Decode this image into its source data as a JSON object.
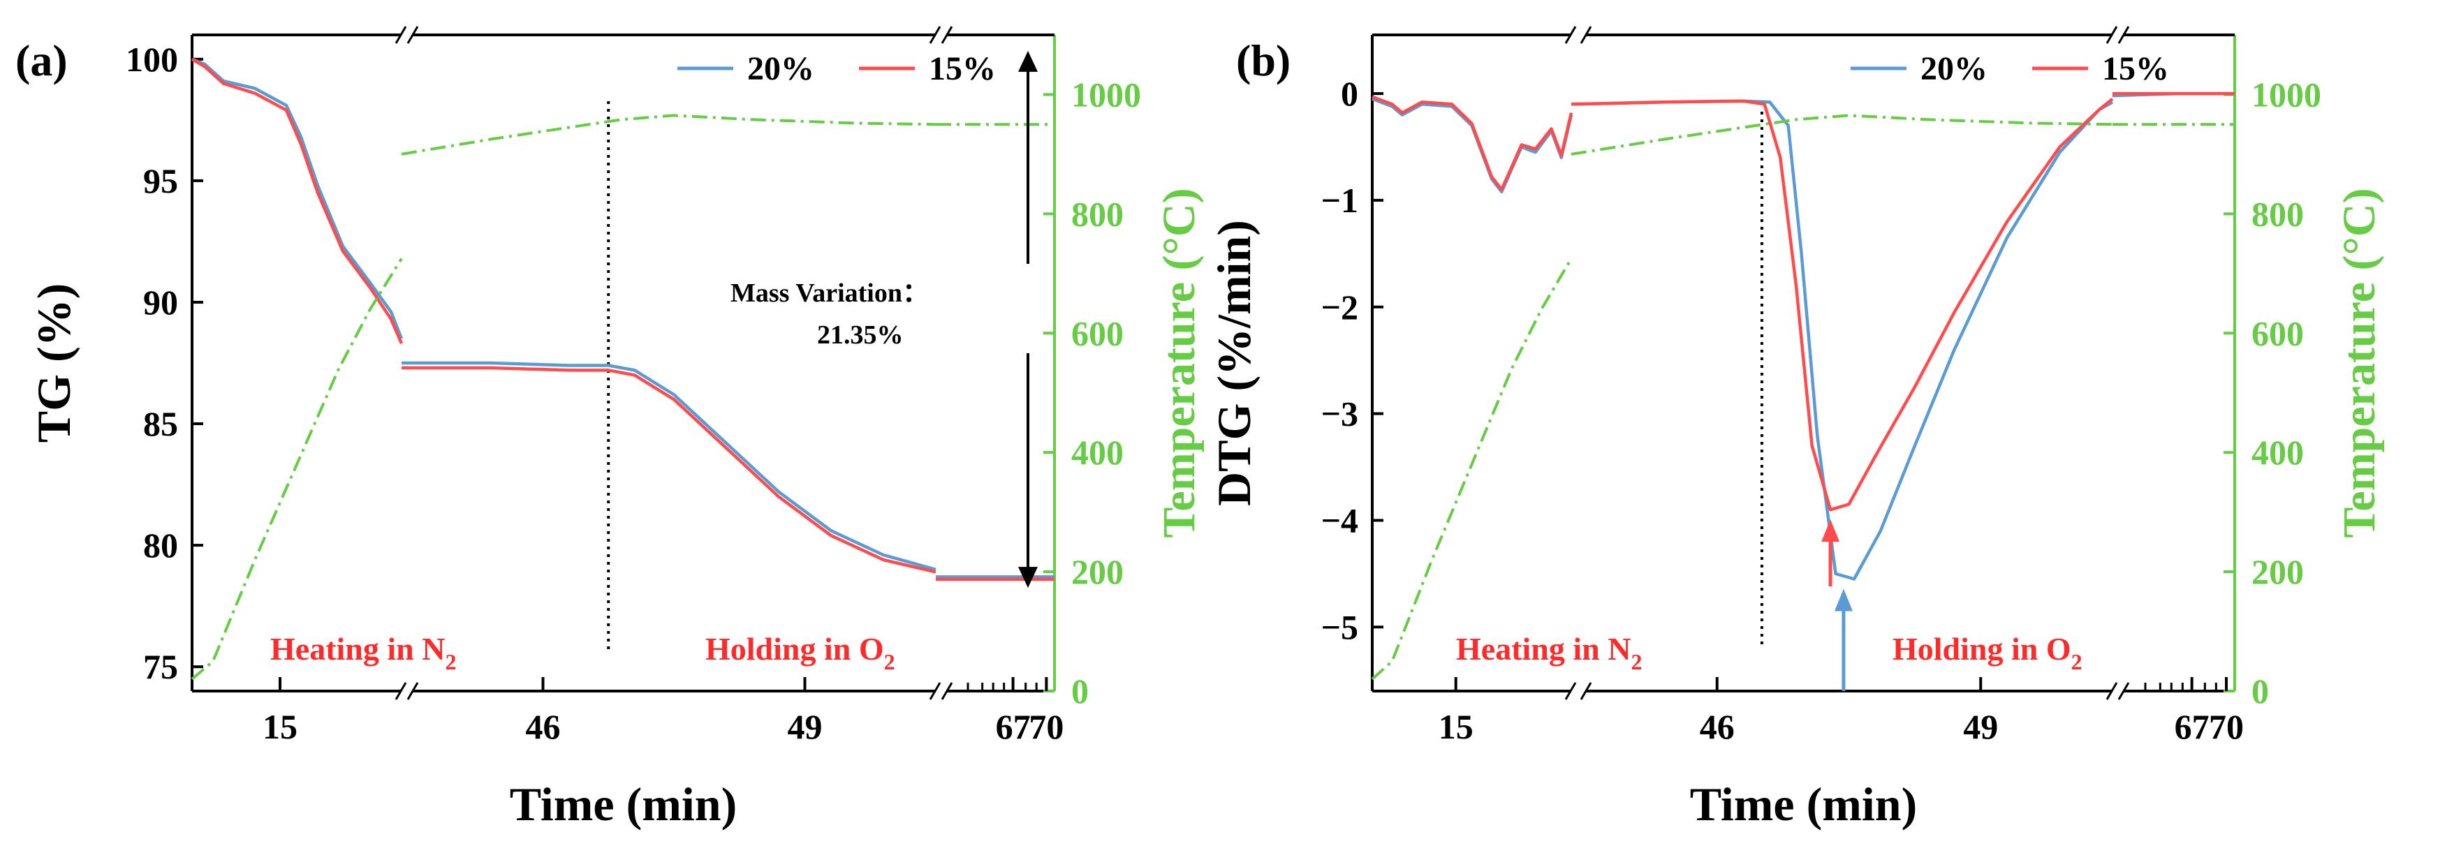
{
  "chart_data": [
    {
      "panel_label": "(a)",
      "type": "line",
      "xlabel": "Time (min)",
      "ylabel_left": "TG (%)",
      "ylabel_right": "Temperature (°C)",
      "ylim_left": [
        74,
        101
      ],
      "ylim_right": [
        0,
        1100
      ],
      "yticks_left": [
        "75",
        "80",
        "85",
        "90",
        "95",
        "100"
      ],
      "yticks_right": [
        "0",
        "200",
        "400",
        "600",
        "800",
        "1000"
      ],
      "xticks": [
        "15",
        "46",
        "49",
        "67",
        "70"
      ],
      "legend": [
        "20%",
        "15%"
      ],
      "series": [
        {
          "name": "20%",
          "color": "#5b9bd5",
          "axis": "left",
          "x": [
            0,
            0.06,
            0.15,
            0.3,
            0.45,
            0.52,
            0.6,
            0.72,
            0.85,
            0.95,
            1.0,
            1.0,
            1.3,
            1.6,
            1.75,
            1.85,
            2.0,
            2.2,
            2.4,
            2.6,
            2.8,
            3.0,
            3.0,
            3.2,
            3.4,
            3.6
          ],
          "y": [
            100,
            99.8,
            99.1,
            98.8,
            98.1,
            96.8,
            94.8,
            92.3,
            90.8,
            89.6,
            88.5,
            87.5,
            87.5,
            87.4,
            87.4,
            87.2,
            86.2,
            84.2,
            82.2,
            80.6,
            79.6,
            79.0,
            78.7,
            78.7,
            78.7,
            78.7
          ]
        },
        {
          "name": "15%",
          "color": "#ff4b4b",
          "axis": "left",
          "x": [
            0,
            0.06,
            0.15,
            0.3,
            0.45,
            0.52,
            0.6,
            0.72,
            0.85,
            0.95,
            1.0,
            1.0,
            1.3,
            1.6,
            1.75,
            1.85,
            2.0,
            2.2,
            2.4,
            2.6,
            2.8,
            3.0,
            3.0,
            3.2,
            3.4,
            3.6
          ],
          "y": [
            100,
            99.7,
            99.0,
            98.6,
            97.9,
            96.5,
            94.5,
            92.1,
            90.6,
            89.3,
            88.3,
            87.3,
            87.3,
            87.2,
            87.2,
            87.0,
            86.0,
            84.0,
            82.0,
            80.4,
            79.4,
            78.9,
            78.6,
            78.6,
            78.6,
            78.6
          ]
        },
        {
          "name": "Temperature",
          "color": "#66cc44",
          "axis": "right",
          "dashed": true,
          "x": [
            0,
            0.1,
            0.3,
            0.5,
            0.7,
            0.85,
            1.0,
            1.0,
            1.3,
            1.6,
            1.8,
            2.0,
            2.3,
            2.7,
            3.0,
            3.0,
            3.6
          ],
          "y": [
            20,
            50,
            220,
            380,
            540,
            640,
            725,
            900,
            925,
            945,
            958,
            965,
            958,
            952,
            950,
            950,
            950
          ]
        }
      ],
      "annotations": {
        "mass_variation_label": "Mass Variation：",
        "mass_variation_value": "21.35%",
        "mass_arrow_top": 100,
        "mass_arrow_bottom": 78.65,
        "divider_x": 1.75,
        "heating_label": "Heating in N",
        "holding_label": "Holding in O",
        "subscript": "2"
      }
    },
    {
      "panel_label": "(b)",
      "type": "line",
      "xlabel": "Time (min)",
      "ylabel_left": "DTG (%/min)",
      "ylabel_right": "Temperature (°C)",
      "ylim_left": [
        -5.6,
        0.55
      ],
      "ylim_right": [
        0,
        1100
      ],
      "yticks_left": [
        "-5",
        "-4",
        "-3",
        "-2",
        "-1",
        "0"
      ],
      "yticks_right": [
        "0",
        "200",
        "400",
        "600",
        "800",
        "1000"
      ],
      "xticks": [
        "15",
        "46",
        "49",
        "67",
        "70"
      ],
      "legend": [
        "20%",
        "15%"
      ],
      "series": [
        {
          "name": "20%",
          "color": "#5b9bd5",
          "axis": "left",
          "x": [
            0,
            0.1,
            0.15,
            0.25,
            0.4,
            0.5,
            0.6,
            0.65,
            0.75,
            0.82,
            0.9,
            0.95,
            1.0,
            1.0,
            1.3,
            1.6,
            1.7,
            1.77,
            1.82,
            1.88,
            1.95,
            2.02,
            2.12,
            2.25,
            2.4,
            2.6,
            2.8,
            2.95,
            3.0,
            3.0,
            3.3,
            3.6
          ],
          "y": [
            -0.05,
            -0.12,
            -0.2,
            -0.1,
            -0.12,
            -0.3,
            -0.8,
            -0.92,
            -0.5,
            -0.55,
            -0.35,
            -0.6,
            -0.2,
            -0.1,
            -0.08,
            -0.07,
            -0.08,
            -0.3,
            -1.5,
            -3.2,
            -4.5,
            -4.55,
            -4.1,
            -3.3,
            -2.4,
            -1.35,
            -0.55,
            -0.15,
            -0.08,
            -0.02,
            0.0,
            0.0
          ]
        },
        {
          "name": "15%",
          "color": "#ff4b4b",
          "axis": "left",
          "x": [
            0,
            0.1,
            0.15,
            0.25,
            0.4,
            0.5,
            0.6,
            0.65,
            0.75,
            0.82,
            0.9,
            0.95,
            1.0,
            1.0,
            1.3,
            1.6,
            1.68,
            1.74,
            1.8,
            1.86,
            1.93,
            2.0,
            2.1,
            2.25,
            2.4,
            2.6,
            2.8,
            2.95,
            3.0,
            3.0,
            3.3,
            3.6
          ],
          "y": [
            -0.03,
            -0.1,
            -0.18,
            -0.08,
            -0.1,
            -0.28,
            -0.78,
            -0.9,
            -0.48,
            -0.52,
            -0.33,
            -0.58,
            -0.18,
            -0.1,
            -0.08,
            -0.07,
            -0.1,
            -0.6,
            -1.8,
            -3.3,
            -3.9,
            -3.85,
            -3.4,
            -2.75,
            -2.05,
            -1.2,
            -0.5,
            -0.15,
            -0.05,
            0.0,
            0.0,
            0.0
          ]
        },
        {
          "name": "Temperature",
          "color": "#66cc44",
          "axis": "right",
          "dashed": true,
          "x": [
            0,
            0.1,
            0.3,
            0.5,
            0.7,
            0.85,
            1.0,
            1.0,
            1.3,
            1.6,
            1.8,
            2.0,
            2.3,
            2.7,
            3.0,
            3.0,
            3.6
          ],
          "y": [
            20,
            50,
            220,
            380,
            540,
            640,
            725,
            900,
            925,
            945,
            958,
            965,
            958,
            952,
            950,
            950,
            950
          ]
        }
      ],
      "annotations": {
        "divider_x": 1.67,
        "peak_arrow_20": {
          "x": 1.98,
          "y": -4.55
        },
        "peak_arrow_15": {
          "x": 1.93,
          "y": -3.9
        },
        "heating_label": "Heating in N",
        "holding_label": "Holding in O",
        "subscript": "2"
      }
    }
  ]
}
